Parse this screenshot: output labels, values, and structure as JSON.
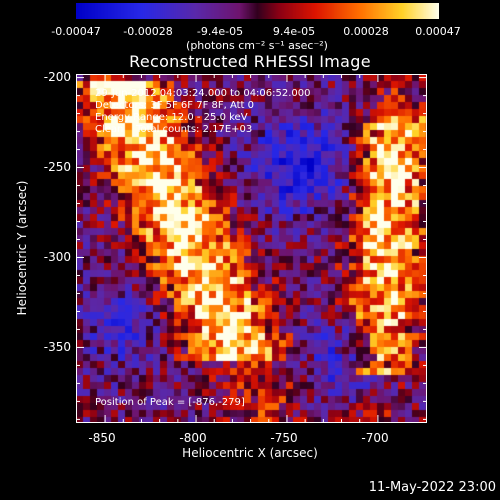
{
  "colorbar": {
    "ticks": [
      "-0.00047",
      "-0.00028",
      "-9.4e-05",
      "9.4e-05",
      "0.00028",
      "0.00047"
    ],
    "units_label": "(photons cm⁻² s⁻¹ asec⁻²)",
    "min": -0.00047,
    "max": 0.00047
  },
  "chart_data": {
    "type": "heatmap",
    "title": "Reconstructed RHESSI Image",
    "xlabel": "Heliocentric X (arcsec)",
    "ylabel": "Heliocentric Y (arcsec)",
    "xlim": [
      -866,
      -673
    ],
    "ylim": [
      -392,
      -198
    ],
    "xticks": [
      "-850",
      "-800",
      "-750",
      "-700"
    ],
    "yticks": [
      "-200",
      "-250",
      "-300",
      "-350"
    ],
    "annotations": [
      "29-Jun-2012 04:03:24.000 to 04:06:52.000",
      "Detectors: 3F 5F 6F 7F 8F, Att 0",
      "Energy Range: 12.0 - 25.0 keV",
      "Clean    Total counts: 2.17E+03"
    ],
    "peak_label": "Position of Peak = [-876,-279]",
    "peak": [
      -876,
      -279
    ]
  },
  "timestamp": "11-May-2022 23:00"
}
